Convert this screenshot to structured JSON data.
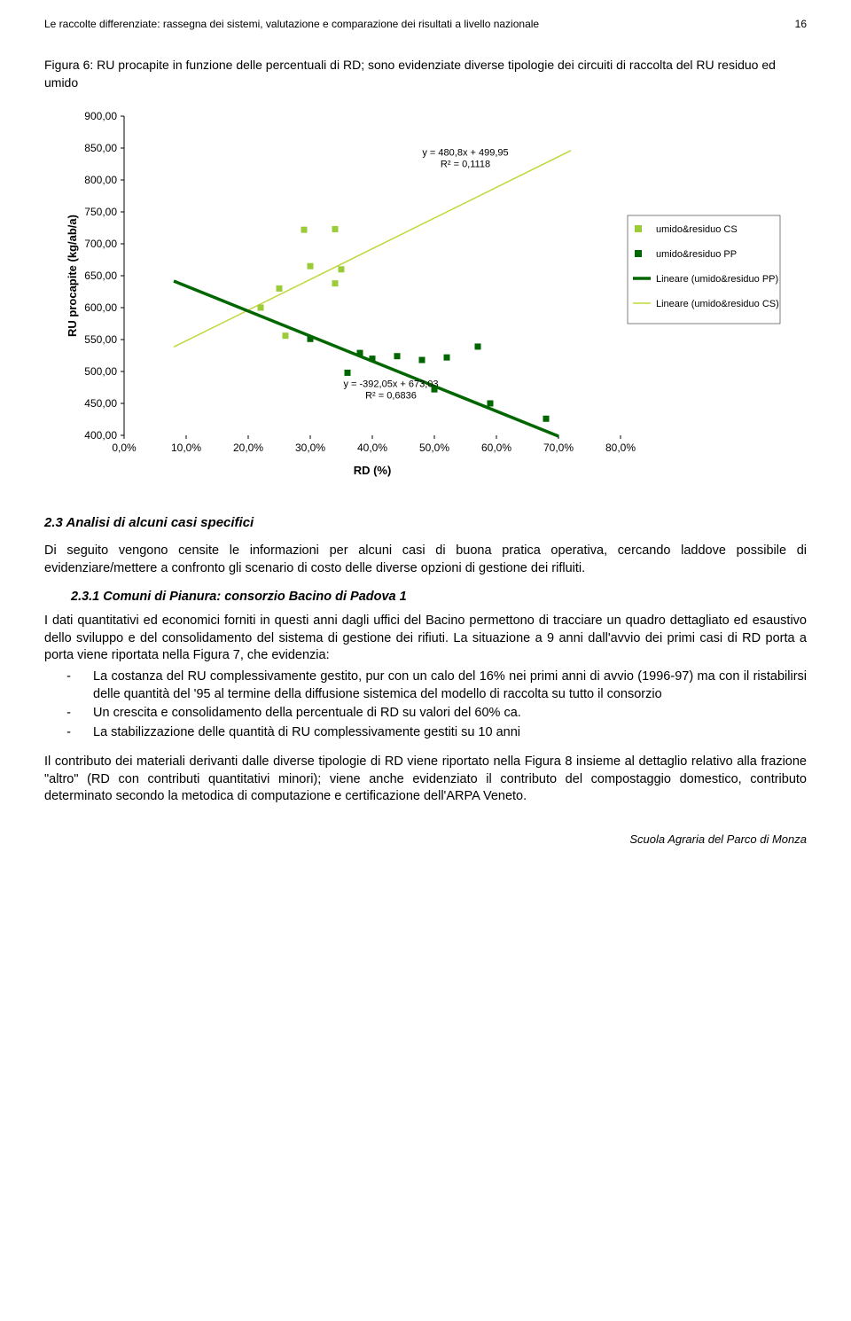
{
  "header": {
    "title": "Le raccolte differenziate: rassegna dei sistemi, valutazione e comparazione dei risultati a livello nazionale",
    "page": "16"
  },
  "figure": {
    "caption": "Figura 6: RU procapite in funzione delle percentuali di RD; sono evidenziate diverse tipologie dei circuiti di raccolta del RU residuo ed umido"
  },
  "chart": {
    "type": "scatter",
    "background_color": "#ffffff",
    "xlabel": "RD (%)",
    "ylabel": "RU procapite (kg/ab/a)",
    "label_fontsize": 13,
    "xlim": [
      0,
      80
    ],
    "ylim": [
      400,
      900
    ],
    "yticks": [
      400,
      450,
      500,
      550,
      600,
      650,
      700,
      750,
      800,
      850,
      900
    ],
    "ytick_labels": [
      "400,00",
      "450,00",
      "500,00",
      "550,00",
      "600,00",
      "650,00",
      "700,00",
      "750,00",
      "800,00",
      "850,00",
      "900,00"
    ],
    "xticks": [
      0,
      10,
      20,
      30,
      40,
      50,
      60,
      70,
      80
    ],
    "xtick_labels": [
      "0,0%",
      "10,0%",
      "20,0%",
      "30,0%",
      "40,0%",
      "50,0%",
      "60,0%",
      "70,0%",
      "80,0%"
    ],
    "series": {
      "cs": {
        "label": "umido&residuo CS",
        "color": "#9ccb3a",
        "marker": "square",
        "marker_size": 7,
        "points": [
          {
            "x": 22,
            "y": 600
          },
          {
            "x": 25,
            "y": 630
          },
          {
            "x": 26,
            "y": 556
          },
          {
            "x": 29,
            "y": 722
          },
          {
            "x": 30,
            "y": 665
          },
          {
            "x": 34,
            "y": 723
          },
          {
            "x": 34,
            "y": 638
          },
          {
            "x": 35,
            "y": 660
          }
        ]
      },
      "pp": {
        "label": "umido&residuo PP",
        "color": "#006600",
        "marker": "square",
        "marker_size": 7,
        "points": [
          {
            "x": 30,
            "y": 551
          },
          {
            "x": 36,
            "y": 498
          },
          {
            "x": 38,
            "y": 529
          },
          {
            "x": 40,
            "y": 520
          },
          {
            "x": 44,
            "y": 524
          },
          {
            "x": 48,
            "y": 518
          },
          {
            "x": 50,
            "y": 472
          },
          {
            "x": 52,
            "y": 522
          },
          {
            "x": 57,
            "y": 539
          },
          {
            "x": 59,
            "y": 450
          },
          {
            "x": 68,
            "y": 426
          }
        ]
      }
    },
    "trendlines": {
      "pp_line": {
        "label": "Lineare (umido&residuo PP)",
        "color": "#006600",
        "width": 3.5,
        "slope": -392.05,
        "intercept": 673.03,
        "annotation": "y = -392,05x + 673,03",
        "r2": "R² = 0,6836",
        "annotation_pos": {
          "x": 43,
          "y": 476
        }
      },
      "cs_line": {
        "label": "Lineare (umido&residuo CS)",
        "color": "#c2d73a",
        "width": 1.5,
        "slope": 480.8,
        "intercept": 499.95,
        "annotation": "y = 480,8x + 499,95",
        "r2": "R² = 0,1118",
        "annotation_pos": {
          "x": 55,
          "y": 838
        }
      }
    },
    "legend_items": [
      {
        "kind": "marker",
        "color": "#9ccb3a",
        "label": "umido&residuo CS"
      },
      {
        "kind": "marker",
        "color": "#006600",
        "label": "umido&residuo PP"
      },
      {
        "kind": "line",
        "color": "#006600",
        "width": 3.5,
        "label": "Lineare (umido&residuo PP)"
      },
      {
        "kind": "line",
        "color": "#c2d73a",
        "width": 1.5,
        "label": "Lineare (umido&residuo CS)"
      }
    ]
  },
  "section": {
    "heading": "2.3   Analisi di alcuni casi specifici",
    "para1": "Di seguito vengono censite le informazioni per alcuni casi di buona pratica operativa, cercando laddove possibile di evidenziare/mettere a confronto gli scenario di costo delle diverse opzioni di gestione dei rifluiti.",
    "subheading": "2.3.1  Comuni di Pianura: consorzio Bacino di Padova 1",
    "para2_intro": "I dati quantitativi ed economici forniti in questi anni dagli uffici del Bacino permettono di tracciare un quadro dettagliato ed esaustivo dello sviluppo e del consolidamento del sistema di gestione dei rifiuti. La situazione a 9 anni dall'avvio dei primi casi di RD porta a porta viene riportata nella Figura 7, che evidenzia:",
    "bullets": [
      "La costanza del RU complessivamente gestito, pur con un calo del 16% nei primi anni di avvio (1996-97) ma con il ristabilirsi delle quantità del '95 al termine della diffusione sistemica del modello di raccolta su tutto il consorzio",
      "Un crescita e consolidamento della percentuale di RD su valori del 60% ca.",
      "La stabilizzazione delle quantità di RU complessivamente gestiti su 10 anni"
    ],
    "para3": "Il contributo dei materiali derivanti dalle diverse tipologie di RD viene riportato nella Figura 8 insieme al dettaglio relativo alla frazione \"altro\" (RD con contributi quantitativi minori); viene anche evidenziato il contributo del compostaggio domestico, contributo determinato secondo la metodica di computazione e certificazione dell'ARPA Veneto."
  },
  "footer": "Scuola Agraria del Parco di Monza"
}
